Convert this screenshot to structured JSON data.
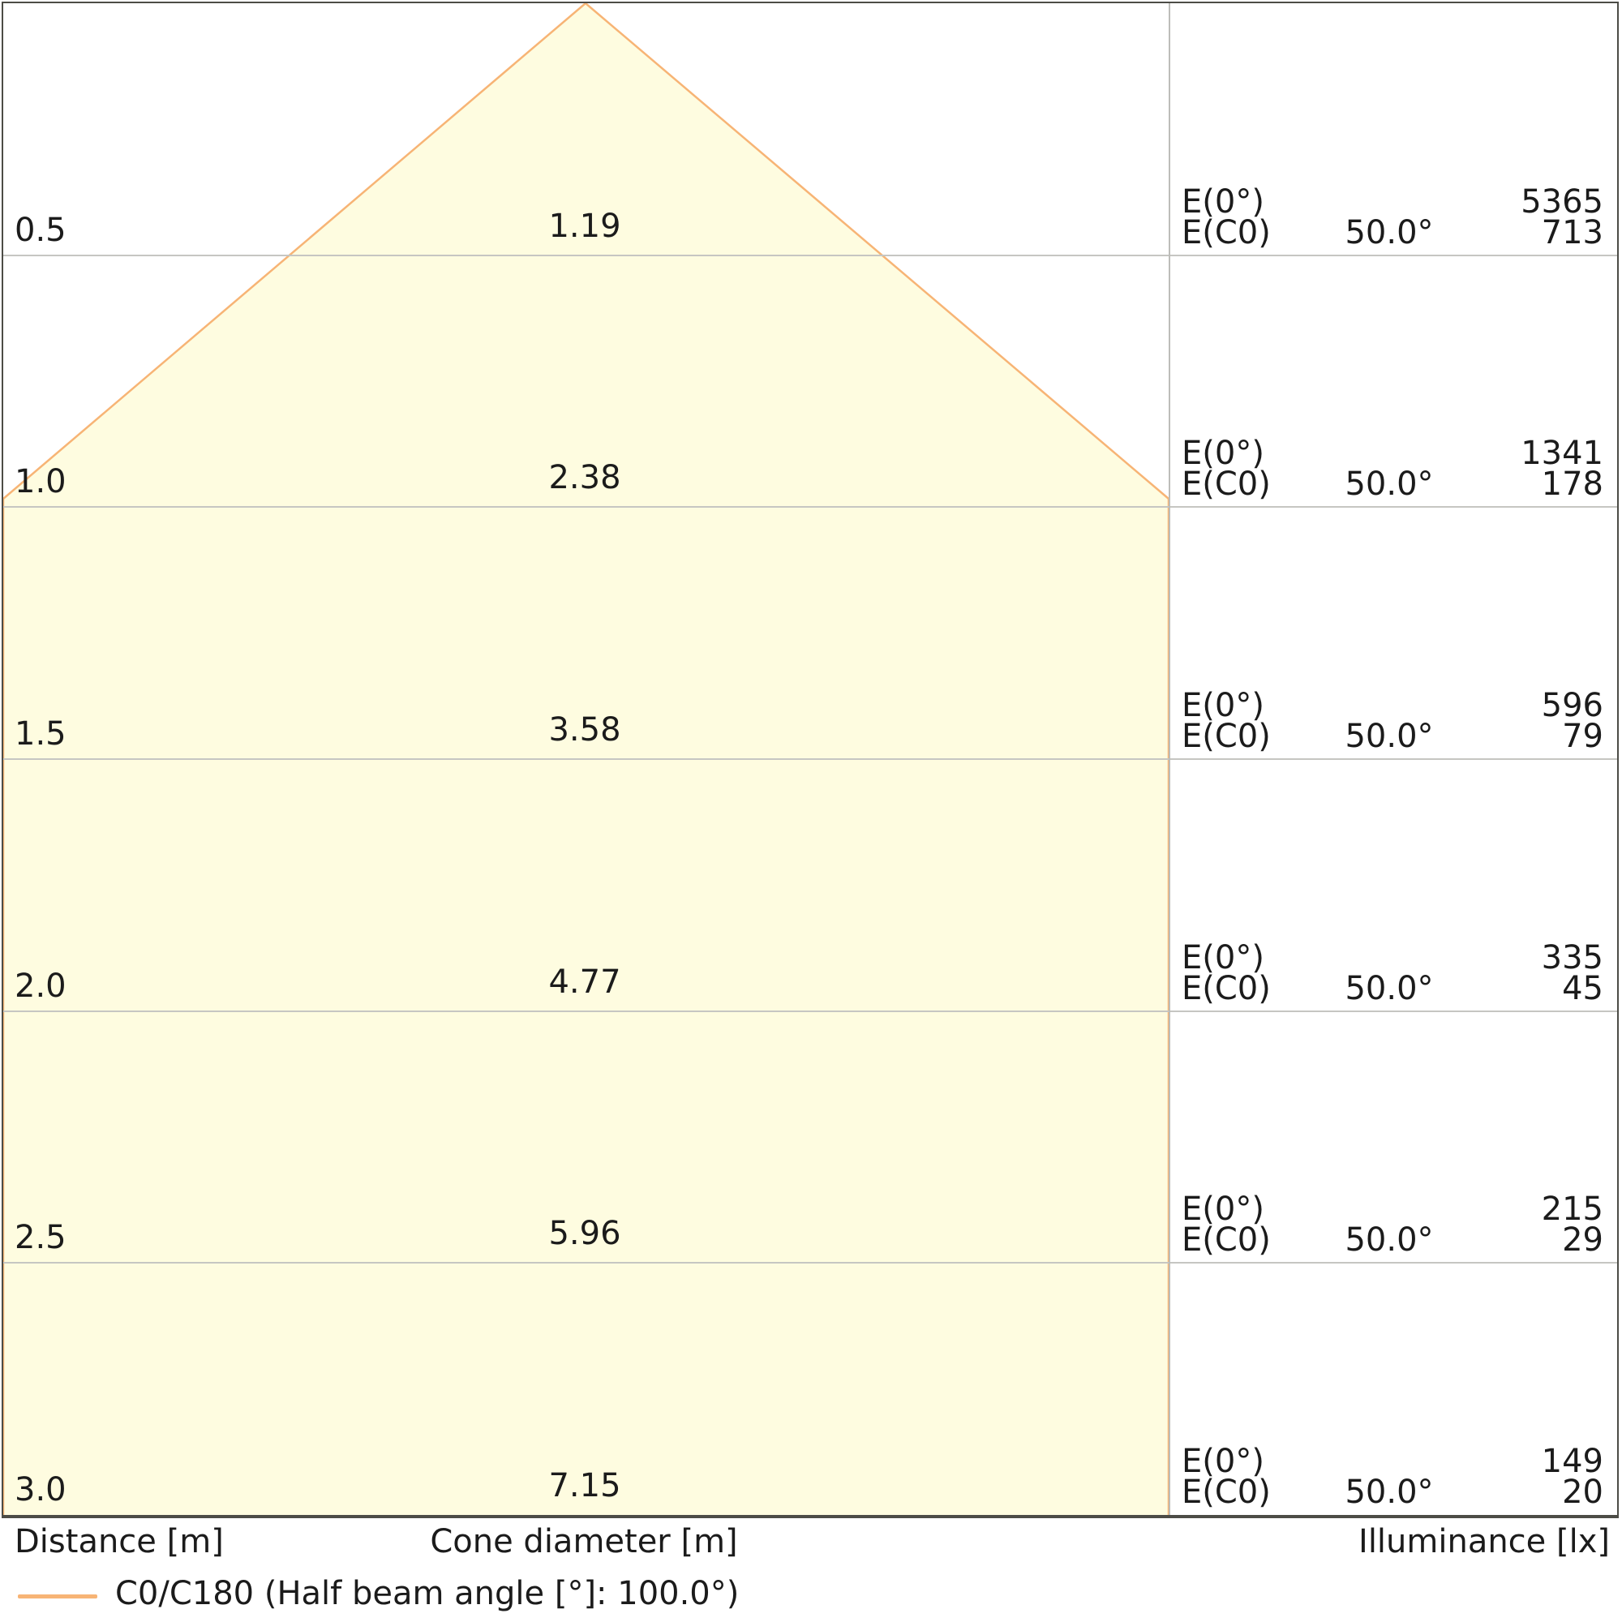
{
  "chart_data": {
    "type": "area",
    "subtype": "light-cone-diagram",
    "x_column_header": "Distance [m]",
    "cone_column_header": "Cone diameter [m]",
    "illuminance_column_header": "Illuminance [lx]",
    "distances_m": [
      0.5,
      1.0,
      1.5,
      2.0,
      2.5,
      3.0
    ],
    "cone_diameters_m": [
      1.19,
      2.38,
      3.58,
      4.77,
      5.96,
      7.15
    ],
    "series": [
      {
        "name": "E(0°)",
        "values": [
          5365,
          1341,
          596,
          335,
          215,
          149
        ]
      },
      {
        "name": "E(C0) 50.0°",
        "values": [
          713,
          178,
          79,
          45,
          29,
          20
        ]
      }
    ],
    "half_beam_angle_deg": 100.0,
    "ec0_angle_deg": 50.0,
    "legend": "C0/C180 (Half beam angle [°]: 100.0°)",
    "legend_position": "bottom-left",
    "grid": true,
    "colors": {
      "cone_fill": "#fefce0",
      "beam_edge": "#f7b475",
      "gridline": "#c6c6c2",
      "border": "#4c4c46",
      "text": "#1b1b1b"
    }
  },
  "labels": {
    "e0": "E(0°)",
    "ec0": "E(C0)"
  },
  "rows": [
    {
      "distance": "0.5",
      "cone": "1.19",
      "e0": "5365",
      "angle": "50.0°",
      "ec0": "713"
    },
    {
      "distance": "1.0",
      "cone": "2.38",
      "e0": "1341",
      "angle": "50.0°",
      "ec0": "178"
    },
    {
      "distance": "1.5",
      "cone": "3.58",
      "e0": "596",
      "angle": "50.0°",
      "ec0": "79"
    },
    {
      "distance": "2.0",
      "cone": "4.77",
      "e0": "335",
      "angle": "50.0°",
      "ec0": "45"
    },
    {
      "distance": "2.5",
      "cone": "5.96",
      "e0": "215",
      "angle": "50.0°",
      "ec0": "29"
    },
    {
      "distance": "3.0",
      "cone": "7.15",
      "e0": "149",
      "angle": "50.0°",
      "ec0": "20"
    }
  ],
  "footer": {
    "distance": "Distance [m]",
    "cone": "Cone diameter [m]",
    "illuminance": "Illuminance [lx]"
  },
  "legend": {
    "label": "C0/C180 (Half beam angle [°]: 100.0°)"
  }
}
